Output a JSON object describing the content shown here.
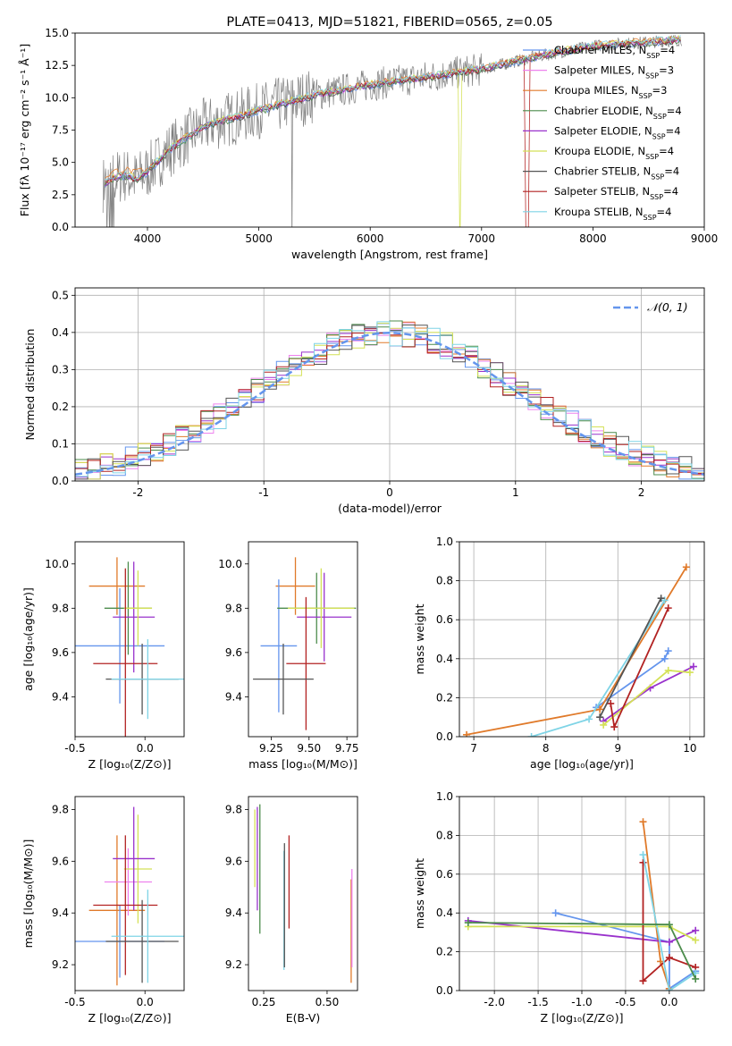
{
  "chart_data": [
    {
      "id": "spectrum",
      "type": "line",
      "title": "PLATE=0413, MJD=51821, FIBERID=0565, z=0.05",
      "xlabel": "wavelength [Angstrom, rest frame]",
      "ylabel": "Flux [fλ 10⁻¹⁷ erg cm⁻² s⁻¹ Å⁻¹]",
      "xlim": [
        3350,
        9000
      ],
      "ylim": [
        0,
        15
      ],
      "xticks": [
        4000,
        5000,
        6000,
        7000,
        8000,
        9000
      ],
      "yticks": [
        0.0,
        2.5,
        5.0,
        7.5,
        10.0,
        12.5,
        15.0
      ],
      "grid": false,
      "legend_position": "right",
      "data_trend": {
        "x": [
          3600,
          3700,
          3800,
          3900,
          4000,
          4200,
          4500,
          5000,
          5500,
          6000,
          6500,
          7000,
          7500,
          8000,
          8500,
          8800
        ],
        "y": [
          3.3,
          3.8,
          4.0,
          3.7,
          4.3,
          6.0,
          7.8,
          9.0,
          10.2,
          11.0,
          11.6,
          12.2,
          13.2,
          14.0,
          14.3,
          14.5
        ]
      },
      "legend": [
        {
          "label": "Chabrier MILES, N",
          "sub": "SSP",
          "suffix": "=4",
          "color": "#6495ed"
        },
        {
          "label": "Salpeter MILES, N",
          "sub": "SSP",
          "suffix": "=3",
          "color": "#ee82ee"
        },
        {
          "label": "Kroupa MILES, N",
          "sub": "SSP",
          "suffix": "=3",
          "color": "#e07a2a"
        },
        {
          "label": "Chabrier ELODIE, N",
          "sub": "SSP",
          "suffix": "=4",
          "color": "#4c8c4c"
        },
        {
          "label": "Salpeter ELODIE, N",
          "sub": "SSP",
          "suffix": "=4",
          "color": "#9932cc"
        },
        {
          "label": "Kroupa ELODIE, N",
          "sub": "SSP",
          "suffix": "=4",
          "color": "#d4e157"
        },
        {
          "label": "Chabrier STELIB, N",
          "sub": "SSP",
          "suffix": "=4",
          "color": "#555555"
        },
        {
          "label": "Salpeter STELIB, N",
          "sub": "SSP",
          "suffix": "=4",
          "color": "#b22222"
        },
        {
          "label": "Kroupa STELIB, N",
          "sub": "SSP",
          "suffix": "=4",
          "color": "#7fd4e6"
        }
      ]
    },
    {
      "id": "residuals",
      "type": "line",
      "xlabel": "(data-model)/error",
      "ylabel": "Normed distribution",
      "xlim": [
        -2.5,
        2.5
      ],
      "ylim": [
        0,
        0.52
      ],
      "xticks": [
        -2,
        -1,
        0,
        1,
        2
      ],
      "yticks": [
        0.0,
        0.1,
        0.2,
        0.3,
        0.4,
        0.5
      ],
      "grid": true,
      "legend": [
        {
          "label": "𝒩(0, 1)",
          "color": "#6495ed"
        }
      ],
      "legend_position": "top-right",
      "series_gaussian": {
        "mean": 0,
        "sigma": 1
      }
    },
    {
      "id": "age_vs_Z",
      "type": "scatter",
      "xlabel": "Z [log₁₀(Z/Z⊙)]",
      "ylabel": "age [log₁₀(age/yr)]",
      "xlim": [
        -0.5,
        0.28
      ],
      "ylim": [
        9.22,
        10.1
      ],
      "xticks": [
        -0.5,
        0.0
      ],
      "yticks": [
        9.4,
        9.6,
        9.8,
        10.0
      ],
      "grid": false,
      "points": [
        {
          "x": -0.2,
          "y": 9.9,
          "xerr": 0.2,
          "yerr": 0.13,
          "series": "Kroupa MILES"
        },
        {
          "x": -0.18,
          "y": 9.63,
          "xerr": 0.32,
          "yerr": 0.26,
          "series": "Chabrier MILES"
        },
        {
          "x": -0.12,
          "y": 9.8,
          "xerr": 0.17,
          "yerr": 0.21,
          "series": "Chabrier ELODIE"
        },
        {
          "x": -0.08,
          "y": 9.76,
          "xerr": 0.15,
          "yerr": 0.25,
          "series": "Salpeter ELODIE"
        },
        {
          "x": -0.05,
          "y": 9.8,
          "xerr": 0.1,
          "yerr": 0.17,
          "series": "Kroupa ELODIE"
        },
        {
          "x": -0.14,
          "y": 9.55,
          "xerr": 0.23,
          "yerr": 0.43,
          "series": "Salpeter STELIB"
        },
        {
          "x": -0.02,
          "y": 9.48,
          "xerr": 0.26,
          "yerr": 0.16,
          "series": "Chabrier STELIB"
        },
        {
          "x": 0.02,
          "y": 9.48,
          "xerr": 0.26,
          "yerr": 0.18,
          "series": "Kroupa STELIB"
        }
      ]
    },
    {
      "id": "age_vs_mass",
      "type": "scatter",
      "xlabel": "mass [log₁₀(M/M⊙)]",
      "ylabel": "",
      "xlim": [
        9.1,
        9.82
      ],
      "ylim": [
        9.22,
        10.1
      ],
      "xticks": [
        9.25,
        9.5,
        9.75
      ],
      "yticks": [
        9.4,
        9.6,
        9.8,
        10.0
      ],
      "grid": false,
      "points": [
        {
          "x": 9.41,
          "y": 9.9,
          "xerr": 0.13,
          "yerr": 0.13,
          "series": "Kroupa MILES"
        },
        {
          "x": 9.3,
          "y": 9.63,
          "xerr": 0.12,
          "yerr": 0.3,
          "series": "Chabrier MILES"
        },
        {
          "x": 9.55,
          "y": 9.8,
          "xerr": 0.26,
          "yerr": 0.16,
          "series": "Chabrier ELODIE"
        },
        {
          "x": 9.6,
          "y": 9.76,
          "xerr": 0.18,
          "yerr": 0.2,
          "series": "Salpeter ELODIE"
        },
        {
          "x": 9.58,
          "y": 9.8,
          "xerr": 0.22,
          "yerr": 0.18,
          "series": "Kroupa ELODIE"
        },
        {
          "x": 9.48,
          "y": 9.55,
          "xerr": 0.13,
          "yerr": 0.3,
          "series": "Salpeter STELIB"
        },
        {
          "x": 9.33,
          "y": 9.48,
          "xerr": 0.2,
          "yerr": 0.16,
          "series": "Chabrier STELIB"
        }
      ]
    },
    {
      "id": "weight_vs_age",
      "type": "line",
      "xlabel": "age [log₁₀(age/yr)]",
      "ylabel": "mass weight",
      "xlim": [
        6.8,
        10.2
      ],
      "ylim": [
        0,
        1.0
      ],
      "xticks": [
        7,
        8,
        9,
        10
      ],
      "yticks": [
        0.0,
        0.2,
        0.4,
        0.6,
        0.8,
        1.0
      ],
      "grid": true,
      "series": [
        {
          "name": "Chabrier MILES",
          "x": [
            8.7,
            9.65,
            9.7
          ],
          "y": [
            0.15,
            0.4,
            0.44
          ]
        },
        {
          "name": "Kroupa MILES",
          "x": [
            6.9,
            8.75,
            9.95
          ],
          "y": [
            0.01,
            0.14,
            0.87
          ]
        },
        {
          "name": "Salpeter ELODIE",
          "x": [
            8.8,
            9.45,
            10.05
          ],
          "y": [
            0.08,
            0.25,
            0.36
          ]
        },
        {
          "name": "Kroupa ELODIE",
          "x": [
            8.8,
            9.7,
            10.0
          ],
          "y": [
            0.06,
            0.34,
            0.33
          ]
        },
        {
          "name": "Salpeter STELIB",
          "x": [
            8.9,
            8.95,
            9.7
          ],
          "y": [
            0.17,
            0.05,
            0.66
          ]
        },
        {
          "name": "Kroupa STELIB",
          "x": [
            7.8,
            8.6,
            9.65
          ],
          "y": [
            0.0,
            0.09,
            0.7
          ]
        },
        {
          "name": "Chabrier STELIB",
          "x": [
            8.75,
            9.6
          ],
          "y": [
            0.1,
            0.71
          ]
        }
      ]
    },
    {
      "id": "mass_vs_Z",
      "type": "scatter",
      "xlabel": "Z [log₁₀(Z/Z⊙)]",
      "ylabel": "mass [log₁₀(M/M⊙)]",
      "xlim": [
        -0.5,
        0.28
      ],
      "ylim": [
        9.1,
        9.85
      ],
      "xticks": [
        -0.5,
        0.0
      ],
      "yticks": [
        9.2,
        9.4,
        9.6,
        9.8
      ],
      "grid": false,
      "points": [
        {
          "x": -0.2,
          "y": 9.41,
          "xerr": 0.2,
          "yerr": 0.29,
          "series": "Kroupa MILES"
        },
        {
          "x": -0.18,
          "y": 9.29,
          "xerr": 0.32,
          "yerr": 0.14,
          "series": "Chabrier MILES"
        },
        {
          "x": -0.12,
          "y": 9.52,
          "xerr": 0.17,
          "yerr": 0.13,
          "series": "Salpeter MILES"
        },
        {
          "x": -0.05,
          "y": 9.57,
          "xerr": 0.1,
          "yerr": 0.21,
          "series": "Kroupa ELODIE"
        },
        {
          "x": -0.08,
          "y": 9.61,
          "xerr": 0.15,
          "yerr": 0.2,
          "series": "Salpeter ELODIE"
        },
        {
          "x": -0.14,
          "y": 9.43,
          "xerr": 0.23,
          "yerr": 0.27,
          "series": "Salpeter STELIB"
        },
        {
          "x": -0.02,
          "y": 9.29,
          "xerr": 0.26,
          "yerr": 0.16,
          "series": "Chabrier STELIB"
        },
        {
          "x": 0.02,
          "y": 9.31,
          "xerr": 0.26,
          "yerr": 0.18,
          "series": "Kroupa STELIB"
        }
      ]
    },
    {
      "id": "mass_vs_ebv",
      "type": "scatter",
      "xlabel": "E(B-V)",
      "ylabel": "",
      "xlim": [
        0.19,
        0.62
      ],
      "ylim": [
        9.1,
        9.85
      ],
      "xticks": [
        0.25,
        0.5
      ],
      "yticks": [
        9.2,
        9.4,
        9.6,
        9.8
      ],
      "grid": false,
      "points": [
        {
          "x": 0.215,
          "y": 9.65,
          "yerr": 0.15,
          "series": "Kroupa ELODIE"
        },
        {
          "x": 0.225,
          "y": 9.61,
          "yerr": 0.2,
          "series": "Salpeter ELODIE"
        },
        {
          "x": 0.235,
          "y": 9.57,
          "yerr": 0.25,
          "series": "Chabrier ELODIE"
        },
        {
          "x": 0.33,
          "y": 9.41,
          "yerr": 0.23,
          "series": "Kroupa STELIB"
        },
        {
          "x": 0.332,
          "y": 9.43,
          "yerr": 0.24,
          "series": "Chabrier STELIB"
        },
        {
          "x": 0.35,
          "y": 9.52,
          "yerr": 0.18,
          "series": "Salpeter STELIB"
        },
        {
          "x": 0.595,
          "y": 9.33,
          "yerr": 0.2,
          "series": "Kroupa MILES"
        },
        {
          "x": 0.598,
          "y": 9.38,
          "yerr": 0.19,
          "series": "Salpeter MILES"
        }
      ]
    },
    {
      "id": "weight_vs_Z",
      "type": "line",
      "xlabel": "Z [log₁₀(Z/Z⊙)]",
      "ylabel": "mass weight",
      "xlim": [
        -2.4,
        0.4
      ],
      "ylim": [
        0,
        1.0
      ],
      "xticks": [
        -2.0,
        -1.5,
        -1.0,
        -0.5,
        0.0
      ],
      "yticks": [
        0.0,
        0.2,
        0.4,
        0.6,
        0.8,
        1.0
      ],
      "grid": true,
      "series": [
        {
          "name": "Chabrier MILES",
          "x": [
            -1.3,
            0.0,
            0.0,
            0.3
          ],
          "y": [
            0.4,
            0.25,
            0.01,
            0.1
          ]
        },
        {
          "name": "Kroupa MILES",
          "x": [
            -0.3,
            -0.1,
            0.0
          ],
          "y": [
            0.87,
            0.15,
            0.01
          ]
        },
        {
          "name": "Salpeter ELODIE",
          "x": [
            -2.3,
            0.0,
            0.3
          ],
          "y": [
            0.36,
            0.25,
            0.31
          ]
        },
        {
          "name": "Kroupa ELODIE",
          "x": [
            -2.3,
            0.0,
            0.3
          ],
          "y": [
            0.33,
            0.33,
            0.26
          ]
        },
        {
          "name": "Salpeter STELIB",
          "x": [
            -0.3,
            -0.3,
            0.0,
            0.3
          ],
          "y": [
            0.66,
            0.05,
            0.17,
            0.12
          ]
        },
        {
          "name": "Kroupa STELIB",
          "x": [
            -0.3,
            0.0,
            0.3
          ],
          "y": [
            0.7,
            0.0,
            0.09
          ]
        },
        {
          "name": "Chabrier ELODIE",
          "x": [
            -2.3,
            0.0,
            0.3
          ],
          "y": [
            0.35,
            0.34,
            0.06
          ]
        }
      ]
    }
  ],
  "colors": {
    "observed": "#808080",
    "gaussian": "#6495ed",
    "grid": "#b0b0b0"
  }
}
